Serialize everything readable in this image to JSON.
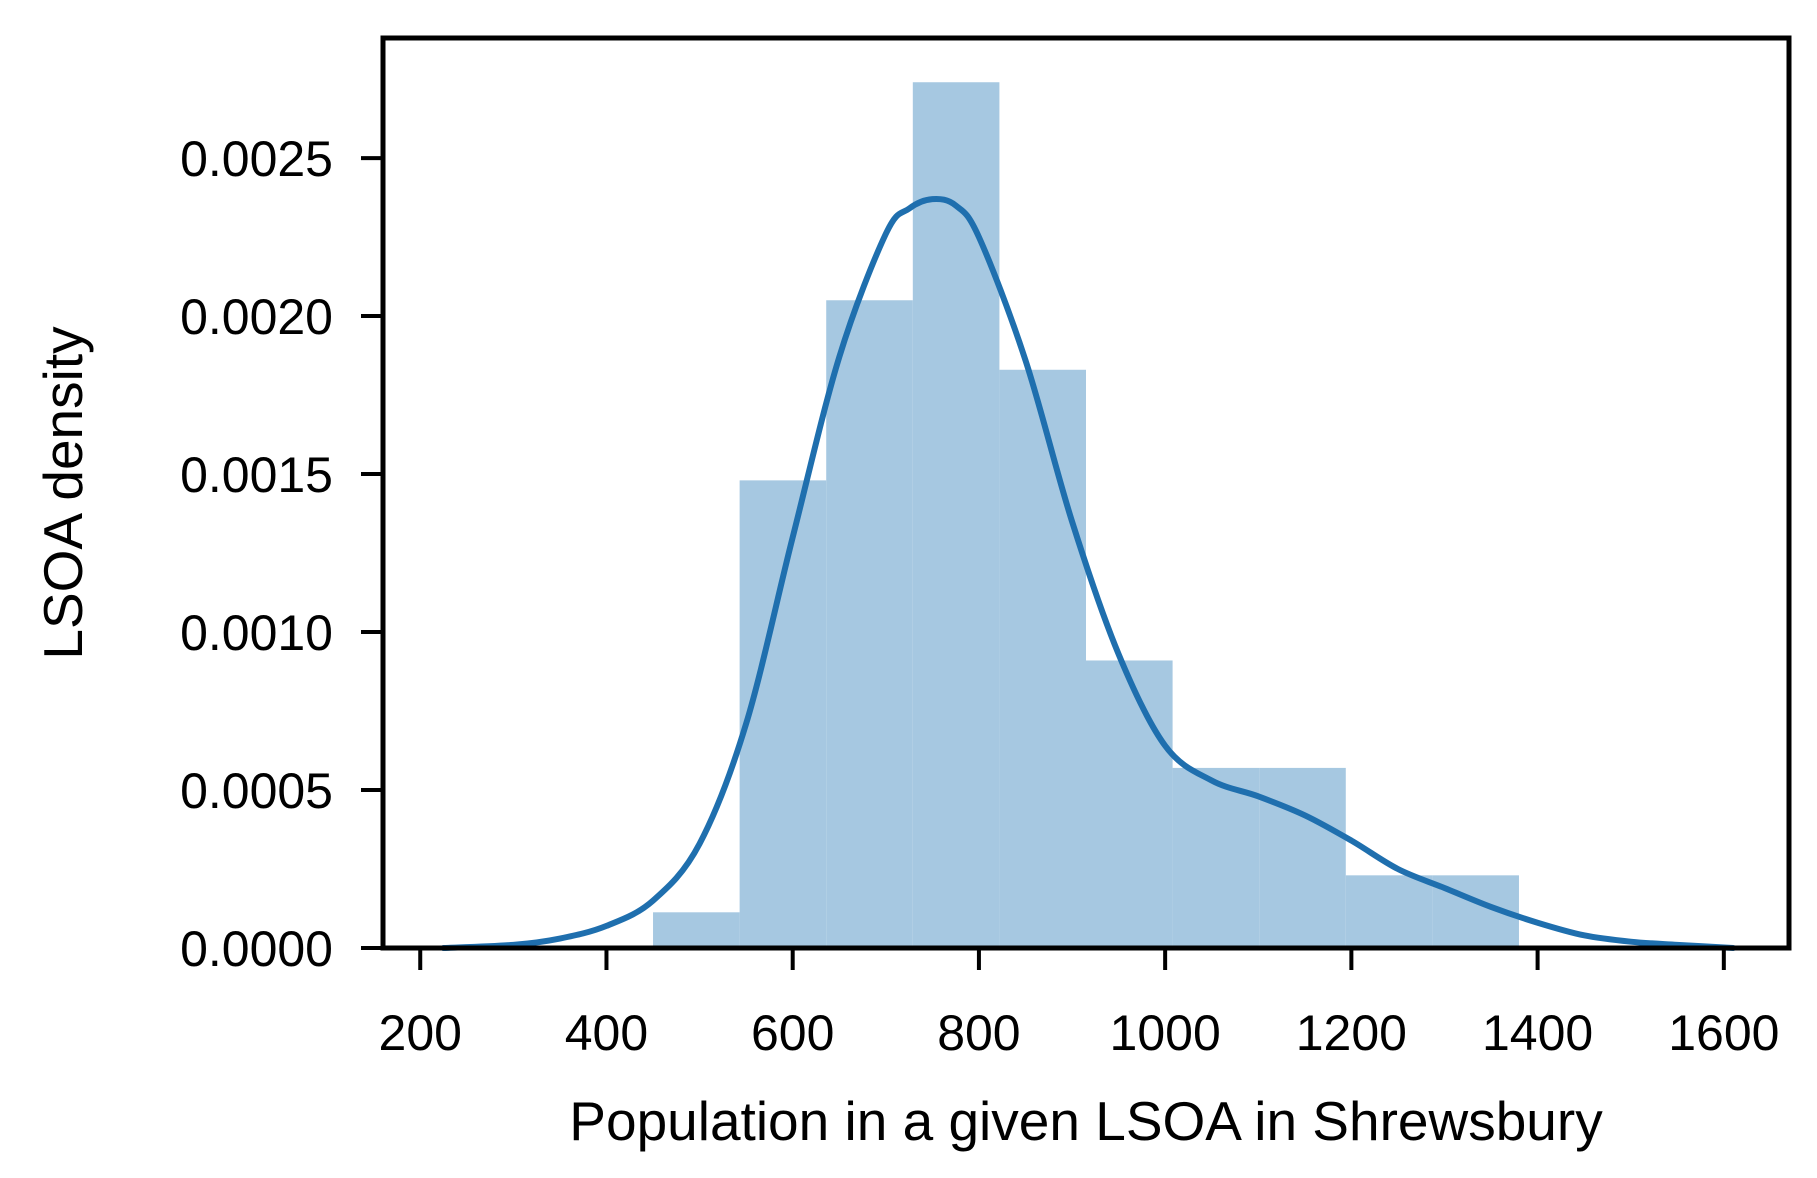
{
  "chart_data": {
    "type": "bar",
    "title": "",
    "xlabel": "Population in a given LSOA in Shrewsbury",
    "ylabel": "LSOA density",
    "xlim": [
      160,
      1670
    ],
    "ylim": [
      0,
      0.00288
    ],
    "grid": false,
    "legend": "none",
    "x_ticks": [
      200,
      400,
      600,
      800,
      1000,
      1200,
      1400,
      1600
    ],
    "x_tick_labels": [
      "200",
      "400",
      "600",
      "800",
      "1000",
      "1200",
      "1400",
      "1600"
    ],
    "y_ticks": [
      0,
      0.0005,
      0.001,
      0.0015,
      0.002,
      0.0025
    ],
    "y_tick_labels": [
      "0.0000",
      "0.0005",
      "0.0010",
      "0.0015",
      "0.0020",
      "0.0025"
    ],
    "histogram": {
      "bin_edges": [
        450,
        543,
        636,
        729,
        822,
        915,
        1008,
        1101,
        1194,
        1287,
        1380
      ],
      "densities": [
        0.000113,
        0.00148,
        0.00205,
        0.00274,
        0.00183,
        0.00091,
        0.00057,
        0.00057,
        0.00023,
        0.00023
      ]
    },
    "kde": {
      "x": [
        225,
        300,
        350,
        400,
        450,
        500,
        550,
        600,
        650,
        700,
        725,
        750,
        775,
        800,
        850,
        900,
        950,
        1000,
        1050,
        1100,
        1150,
        1200,
        1250,
        1300,
        1350,
        1400,
        1450,
        1500,
        1550,
        1610
      ],
      "y": [
        0,
        1e-05,
        3e-05,
        7e-05,
        0.00015,
        0.00033,
        0.00071,
        0.0013,
        0.00187,
        0.00226,
        0.00234,
        0.00237,
        0.00235,
        0.00225,
        0.00186,
        0.00135,
        0.00093,
        0.00064,
        0.00053,
        0.00048,
        0.00042,
        0.00034,
        0.00025,
        0.00019,
        0.00013,
        8e-05,
        4e-05,
        2e-05,
        1e-05,
        0
      ]
    },
    "colors": {
      "histogram": "#a6c8e1",
      "kde": "#1f6fae",
      "axes": "#000000"
    }
  }
}
